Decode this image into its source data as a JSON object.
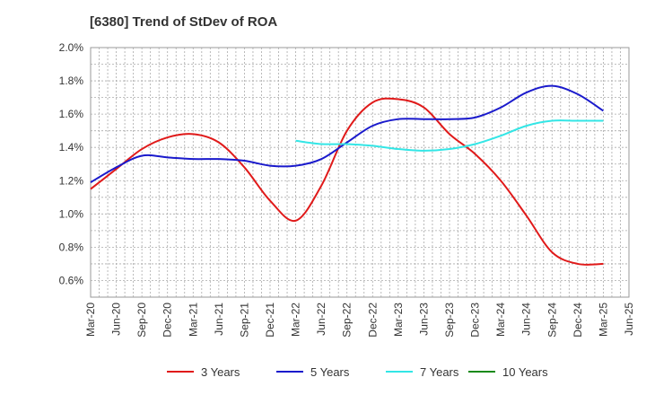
{
  "chart_data": {
    "type": "line",
    "title": "[6380]  Trend of StDev of ROA",
    "xlabel": "",
    "ylabel": "",
    "categories": [
      "Mar-20",
      "Jun-20",
      "Sep-20",
      "Dec-20",
      "Mar-21",
      "Jun-21",
      "Sep-21",
      "Dec-21",
      "Mar-22",
      "Jun-22",
      "Sep-22",
      "Dec-22",
      "Mar-23",
      "Jun-23",
      "Sep-23",
      "Dec-23",
      "Mar-24",
      "Jun-24",
      "Sep-24",
      "Dec-24",
      "Mar-25",
      "Jun-25"
    ],
    "y_ticks": [
      "0.6%",
      "0.8%",
      "1.0%",
      "1.2%",
      "1.4%",
      "1.6%",
      "1.8%",
      "2.0%"
    ],
    "ylim": [
      0.5,
      2.0
    ],
    "grid": true,
    "legend_position": "bottom",
    "series": [
      {
        "name": "3 Years",
        "color": "#e01a1a",
        "points": [
          [
            0,
            1.15
          ],
          [
            1,
            1.27
          ],
          [
            2,
            1.39
          ],
          [
            3,
            1.46
          ],
          [
            4,
            1.48
          ],
          [
            5,
            1.43
          ],
          [
            6,
            1.28
          ],
          [
            7,
            1.08
          ],
          [
            8,
            0.96
          ],
          [
            9,
            1.17
          ],
          [
            10,
            1.5
          ],
          [
            11,
            1.67
          ],
          [
            12,
            1.69
          ],
          [
            13,
            1.64
          ],
          [
            14,
            1.48
          ],
          [
            15,
            1.36
          ],
          [
            16,
            1.2
          ],
          [
            17,
            0.99
          ],
          [
            18,
            0.77
          ],
          [
            19,
            0.7
          ],
          [
            20,
            0.7
          ]
        ]
      },
      {
        "name": "5 Years",
        "color": "#1a1acc",
        "points": [
          [
            0,
            1.19
          ],
          [
            1,
            1.28
          ],
          [
            2,
            1.35
          ],
          [
            3,
            1.34
          ],
          [
            4,
            1.33
          ],
          [
            5,
            1.33
          ],
          [
            6,
            1.32
          ],
          [
            7,
            1.29
          ],
          [
            8,
            1.29
          ],
          [
            9,
            1.33
          ],
          [
            10,
            1.43
          ],
          [
            11,
            1.53
          ],
          [
            12,
            1.57
          ],
          [
            13,
            1.57
          ],
          [
            14,
            1.57
          ],
          [
            15,
            1.58
          ],
          [
            16,
            1.64
          ],
          [
            17,
            1.73
          ],
          [
            18,
            1.77
          ],
          [
            19,
            1.72
          ],
          [
            20,
            1.62
          ]
        ]
      },
      {
        "name": "7 Years",
        "color": "#33e6e6",
        "points": [
          [
            8,
            1.44
          ],
          [
            9,
            1.42
          ],
          [
            10,
            1.42
          ],
          [
            11,
            1.41
          ],
          [
            12,
            1.39
          ],
          [
            13,
            1.38
          ],
          [
            14,
            1.39
          ],
          [
            15,
            1.42
          ],
          [
            16,
            1.47
          ],
          [
            17,
            1.53
          ],
          [
            18,
            1.56
          ],
          [
            19,
            1.56
          ],
          [
            20,
            1.56
          ]
        ]
      },
      {
        "name": "10 Years",
        "color": "#1a8a1a",
        "points": []
      }
    ]
  }
}
